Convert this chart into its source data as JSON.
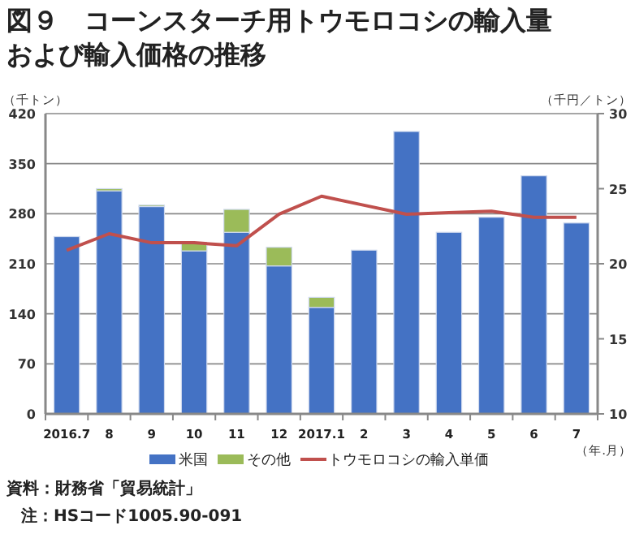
{
  "chart_data": {
    "type": "bar",
    "title": "図９　コーンスターチ用トウモロコシの輸入量および輸入価格の推移",
    "ylabel": "（千トン）",
    "y2label": "（千円／トン）",
    "xlabel": "（年.月）",
    "categories": [
      "2016.7",
      "8",
      "9",
      "10",
      "11",
      "12",
      "2017.1",
      "2",
      "3",
      "4",
      "5",
      "6",
      "7"
    ],
    "stacked": true,
    "grid": "y",
    "legend": "bottom",
    "ylim": [
      0,
      420
    ],
    "yticks": [
      0,
      70,
      140,
      210,
      280,
      350,
      420
    ],
    "y2lim": [
      10,
      30
    ],
    "y2ticks": [
      10,
      15,
      20,
      25,
      30
    ],
    "series": [
      {
        "name": "米国",
        "color": "#4472c4",
        "values": [
          248,
          312,
          290,
          228,
          254,
          207,
          149,
          229,
          395,
          254,
          275,
          333,
          267
        ]
      },
      {
        "name": "その他",
        "color": "#9bbb59",
        "values": [
          0,
          3,
          2,
          11,
          32,
          26,
          14,
          0,
          0,
          0,
          0,
          0,
          0
        ]
      },
      {
        "name": "トウモロコシの輸入単価",
        "type": "line",
        "axis": "y2",
        "color": "#c0504d",
        "values": [
          20.9,
          22.0,
          21.4,
          21.4,
          21.2,
          23.3,
          24.5,
          23.9,
          23.3,
          23.4,
          23.5,
          23.1,
          23.1
        ]
      }
    ],
    "annotations": [
      "資料：財務省「貿易統計」",
      "注：HSコード1005.90-091"
    ]
  }
}
